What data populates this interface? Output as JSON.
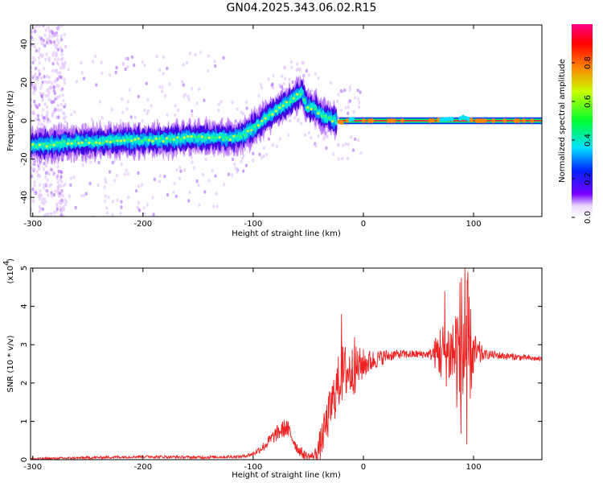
{
  "title": "GN04.2025.343.06.02.R15",
  "colorbar": {
    "label": "Normalized spectral amplitude",
    "ticks": [
      "0.0",
      "0.2",
      "0.4",
      "0.6",
      "0.8"
    ]
  },
  "chart_data": [
    {
      "type": "heatmap",
      "title": "GN04.2025.343.06.02.R15",
      "xlabel": "Height of straight line (km)",
      "ylabel": "Frequency (Hz)",
      "xlim": [
        -302,
        162
      ],
      "ylim": [
        -50,
        50
      ],
      "xticks": [
        "-300",
        "-200",
        "-100",
        "0",
        "100"
      ],
      "yticks": [
        "40",
        "20",
        "0",
        "-20",
        "-40"
      ],
      "colorscale": "rainbow (0 = white/violet, 1 = red/magenta)",
      "zlim": [
        0,
        1
      ],
      "ridge": {
        "x": [
          -302,
          -280,
          -260,
          -240,
          -220,
          -200,
          -180,
          -160,
          -140,
          -120,
          -110,
          -100,
          -90,
          -80,
          -70,
          -60,
          -56,
          -52,
          -48,
          -44,
          -40,
          -35,
          -30,
          -25,
          -20,
          -15,
          -10,
          -5,
          0,
          20,
          40,
          60,
          80,
          85,
          90,
          100,
          120,
          162
        ],
        "frequency": [
          -13,
          -12,
          -11,
          -11,
          -10,
          -10,
          -10,
          -9,
          -9,
          -9,
          -8,
          -4,
          1,
          5,
          9,
          13,
          15,
          8,
          7,
          6,
          4,
          2,
          1,
          0,
          -1,
          0,
          1,
          0,
          0,
          0,
          0,
          0,
          1,
          0,
          2,
          0,
          0,
          0
        ]
      },
      "high_amplitude_band": {
        "x_start": -22,
        "x_end": 162,
        "frequency": 0
      },
      "scatter_region": {
        "x_start": -302,
        "x_end": -270,
        "frequency_range": [
          -50,
          50
        ]
      }
    },
    {
      "type": "line",
      "title": "",
      "xlabel": "Height of straight line (km)",
      "ylabel": "SNR (10 * v/v)",
      "y_multiplier": "(x10^4)",
      "xlim": [
        -302,
        162
      ],
      "ylim": [
        0,
        5
      ],
      "xticks": [
        "-300",
        "-200",
        "-100",
        "0",
        "100"
      ],
      "yticks": [
        "5",
        "4",
        "3",
        "2",
        "1",
        "0"
      ],
      "color": "#ee2222",
      "series": [
        {
          "envelope_x": [
            -302,
            -250,
            -200,
            -150,
            -110,
            -100,
            -90,
            -80,
            -70,
            -65,
            -60,
            -55,
            -50,
            -45,
            -40,
            -35,
            -30,
            -25,
            -20,
            -15,
            -10,
            0,
            10,
            20,
            30,
            40,
            50,
            60,
            70,
            75,
            80,
            85,
            90,
            95,
            100,
            110,
            130,
            162
          ],
          "envelope_y": [
            0.02,
            0.05,
            0.08,
            0.06,
            0.08,
            0.15,
            0.35,
            0.65,
            0.85,
            0.6,
            0.3,
            0.15,
            0.08,
            0.1,
            0.3,
            0.8,
            1.3,
            1.8,
            2.2,
            2.3,
            2.3,
            2.5,
            2.6,
            2.7,
            2.75,
            2.75,
            2.75,
            2.75,
            2.8,
            2.8,
            2.8,
            2.8,
            2.8,
            2.8,
            2.75,
            2.75,
            2.7,
            2.62
          ],
          "noise_amplitude_x": [
            -302,
            -110,
            -100,
            -80,
            -70,
            -60,
            -45,
            -40,
            -30,
            -20,
            -10,
            0,
            10,
            30,
            60,
            65,
            70,
            80,
            85,
            90,
            95,
            100,
            110,
            162
          ],
          "noise_amplitude_y": [
            0.03,
            0.04,
            0.06,
            0.2,
            0.25,
            0.15,
            0.1,
            0.4,
            0.6,
            0.8,
            0.7,
            0.4,
            0.25,
            0.12,
            0.1,
            0.4,
            0.8,
            1.0,
            1.6,
            2.4,
            1.8,
            0.6,
            0.12,
            0.06
          ],
          "peaks": [
            {
              "x": -20,
              "y": 3.8
            },
            {
              "x": -8,
              "y": 3.2
            },
            {
              "x": 92,
              "y": 5.1
            },
            {
              "x": 95,
              "y": 4.9
            },
            {
              "x": 74,
              "y": 4.4
            },
            {
              "x": 94,
              "y": 0.4
            }
          ]
        }
      ]
    }
  ]
}
